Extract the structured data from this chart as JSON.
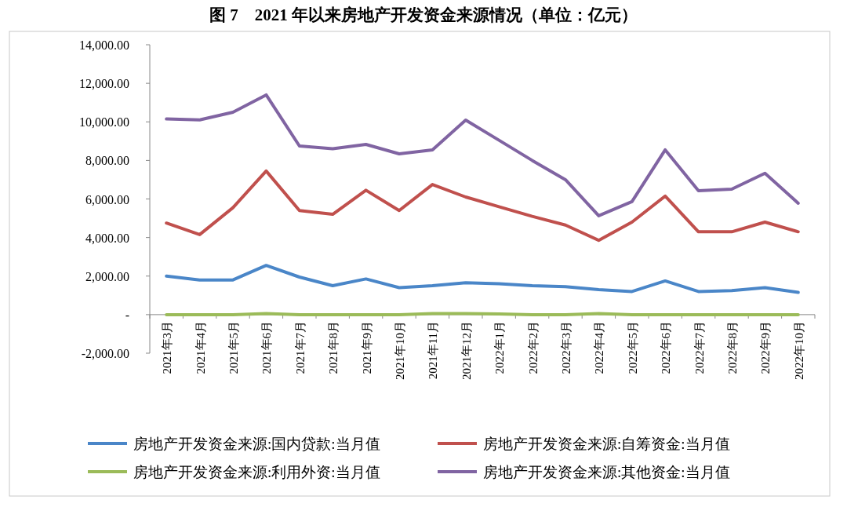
{
  "chart_data": {
    "type": "line",
    "title": "图 7　2021 年以来房地产开发资金来源情况（单位：亿元）",
    "categories": [
      "2021年3月",
      "2021年4月",
      "2021年5月",
      "2021年6月",
      "2021年7月",
      "2021年8月",
      "2021年9月",
      "2021年10月",
      "2021年11月",
      "2021年12月",
      "2022年1月",
      "2022年2月",
      "2022年3月",
      "2022年4月",
      "2022年5月",
      "2022年6月",
      "2022年7月",
      "2022年8月",
      "2022年9月",
      "2022年10月"
    ],
    "series": [
      {
        "name": "房地产开发资金来源:国内贷款:当月值",
        "color": "#4a86c8",
        "values": [
          2000,
          1800,
          1800,
          2550,
          1950,
          1500,
          1850,
          1400,
          1500,
          1650,
          1600,
          1500,
          1450,
          1300,
          1200,
          1750,
          1200,
          1250,
          1400,
          1150
        ]
      },
      {
        "name": "房地产开发资金来源:自筹资金:当月值",
        "color": "#c0504d",
        "values": [
          4750,
          4150,
          5550,
          7450,
          5400,
          5200,
          6450,
          5400,
          6750,
          6100,
          5600,
          5100,
          4650,
          3850,
          4800,
          6150,
          4300,
          4300,
          4800,
          4300
        ]
      },
      {
        "name": "房地产开发资金来源:利用外资:当月值",
        "color": "#9bbb59",
        "values": [
          0,
          0,
          0,
          50,
          0,
          0,
          0,
          0,
          50,
          50,
          30,
          0,
          0,
          50,
          0,
          0,
          0,
          0,
          0,
          0
        ]
      },
      {
        "name": "房地产开发资金来源:其他资金:当月值",
        "color": "#8064a2",
        "values": [
          10150,
          10100,
          10500,
          11400,
          8750,
          8600,
          8830,
          8340,
          8550,
          10090,
          9050,
          8000,
          7000,
          5130,
          5860,
          8550,
          6430,
          6510,
          7330,
          5780
        ]
      }
    ],
    "ylim": [
      -2000,
      14000
    ],
    "yticks": [
      {
        "value": -2000,
        "label": "-2,000.00"
      },
      {
        "value": 0,
        "label": "-"
      },
      {
        "value": 2000,
        "label": "2,000.00"
      },
      {
        "value": 4000,
        "label": "4,000.00"
      },
      {
        "value": 6000,
        "label": "6,000.00"
      },
      {
        "value": 8000,
        "label": "8,000.00"
      },
      {
        "value": 10000,
        "label": "10,000.00"
      },
      {
        "value": 12000,
        "label": "12,000.00"
      },
      {
        "value": 14000,
        "label": "14,000.00"
      }
    ],
    "grid": false,
    "legend": "bottom",
    "marker": "none",
    "line_style": "solid"
  }
}
